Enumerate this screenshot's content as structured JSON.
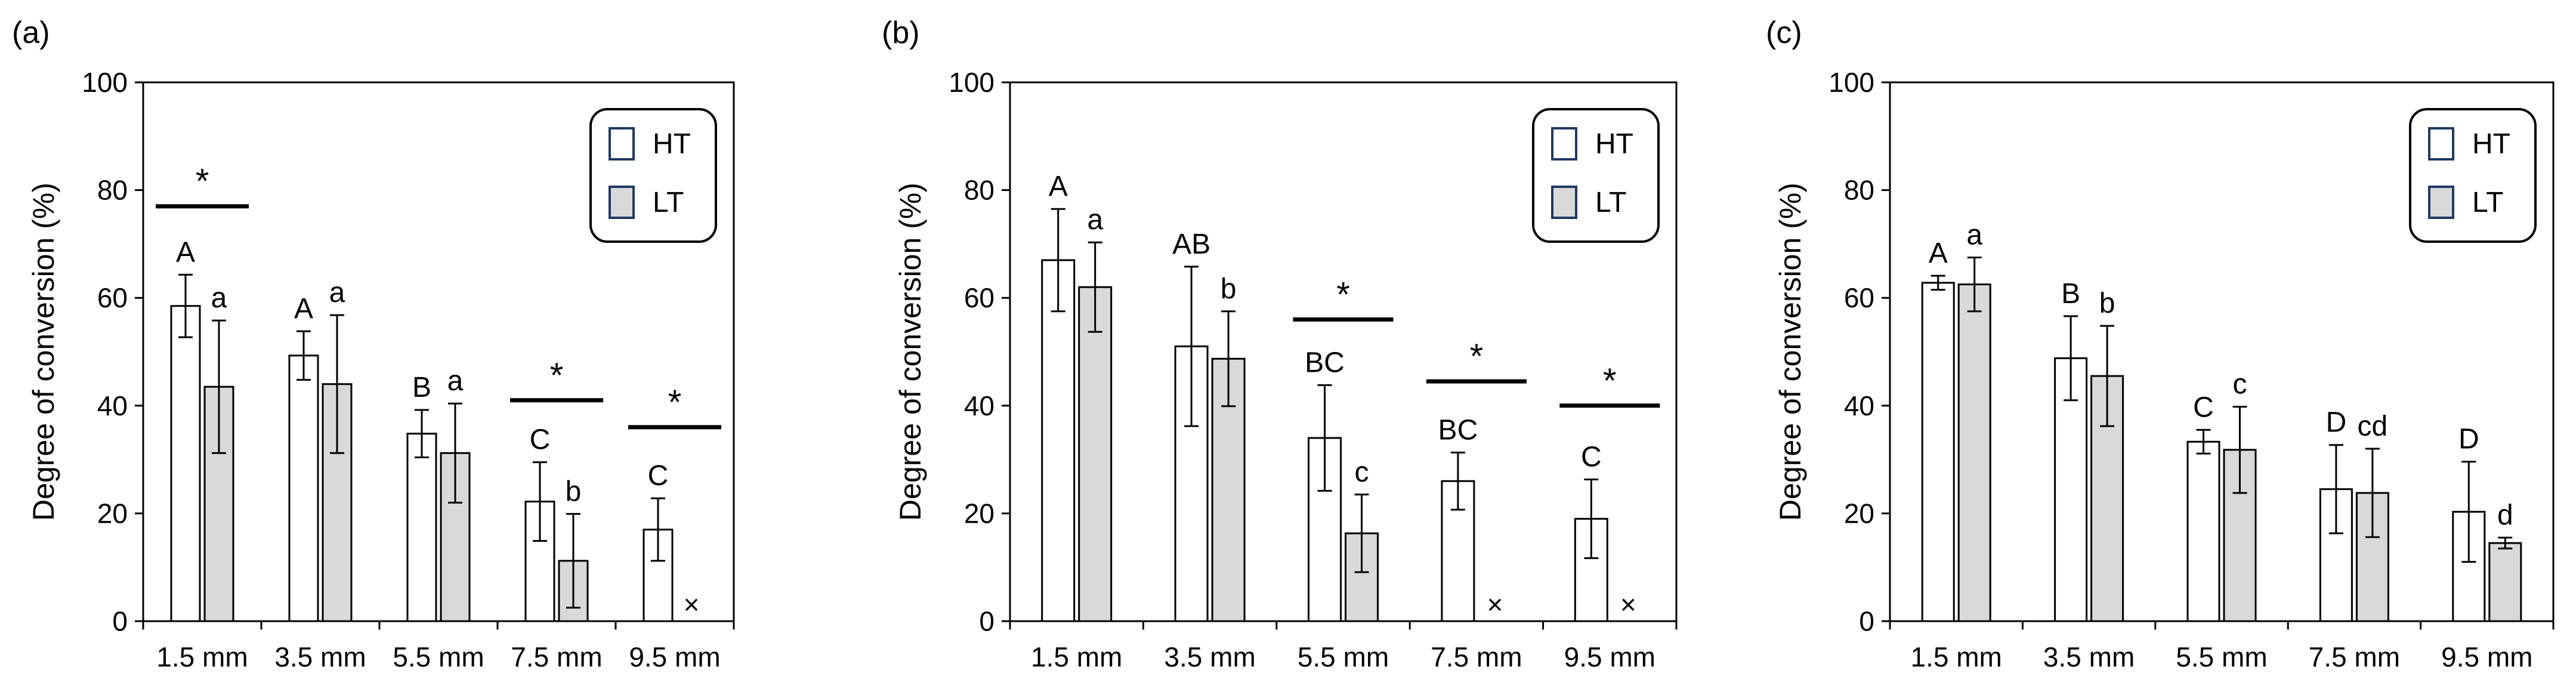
{
  "figure": {
    "colors": {
      "ht_fill": "#ffffff",
      "lt_fill": "#d9d9d9",
      "stroke": "#000000",
      "legend_stroke": "#1f3864"
    }
  },
  "chart_data": [
    {
      "panel_label": "(a)",
      "type": "bar",
      "ylabel": "Degree of conversion (%)",
      "xlabel": "",
      "ylim": [
        0,
        100
      ],
      "yticks": [
        "0",
        "20",
        "40",
        "60",
        "80",
        "100"
      ],
      "categories": [
        "1.5 mm",
        "3.5 mm",
        "5.5 mm",
        "7.5 mm",
        "9.5 mm"
      ],
      "legend": {
        "position": "top-right",
        "entries": [
          "HT",
          "LT"
        ]
      },
      "series": [
        {
          "name": "HT",
          "values": [
            58.5,
            49.3,
            34.8,
            22.2,
            17.0
          ],
          "errors": [
            5.8,
            4.5,
            4.4,
            7.3,
            5.8
          ],
          "letters": [
            "A",
            "A",
            "B",
            "C",
            "C"
          ]
        },
        {
          "name": "LT",
          "values": [
            43.5,
            44.0,
            31.2,
            11.2,
            null
          ],
          "errors": [
            12.3,
            12.8,
            9.2,
            8.7,
            null
          ],
          "letters": [
            "a",
            "a",
            "a",
            "b",
            ""
          ]
        }
      ],
      "missing_marker": "×",
      "significance": {
        "marker": "*",
        "categories": [
          "1.5 mm",
          "7.5 mm",
          "9.5 mm"
        ],
        "levels": [
          77,
          41,
          36
        ]
      }
    },
    {
      "panel_label": "(b)",
      "type": "bar",
      "ylabel": "Degree of conversion (%)",
      "xlabel": "",
      "ylim": [
        0,
        100
      ],
      "yticks": [
        "0",
        "20",
        "40",
        "60",
        "80",
        "100"
      ],
      "categories": [
        "1.5 mm",
        "3.5 mm",
        "5.5 mm",
        "7.5 mm",
        "9.5 mm"
      ],
      "legend": {
        "position": "top-right",
        "entries": [
          "HT",
          "LT"
        ]
      },
      "series": [
        {
          "name": "HT",
          "values": [
            67.0,
            51.0,
            34.0,
            26.0,
            19.0
          ],
          "errors": [
            9.5,
            14.8,
            9.8,
            5.3,
            7.3
          ],
          "letters": [
            "A",
            "AB",
            "BC",
            "BC",
            "C"
          ]
        },
        {
          "name": "LT",
          "values": [
            62.0,
            48.7,
            16.3,
            null,
            null
          ],
          "errors": [
            8.3,
            8.8,
            7.2,
            null,
            null
          ],
          "letters": [
            "a",
            "b",
            "c",
            "",
            ""
          ]
        }
      ],
      "missing_marker": "×",
      "significance": {
        "marker": "*",
        "categories": [
          "5.5 mm",
          "7.5 mm",
          "9.5 mm"
        ],
        "levels": [
          56,
          44.5,
          40
        ]
      }
    },
    {
      "panel_label": "(c)",
      "type": "bar",
      "ylabel": "Degree of conversion (%)",
      "xlabel": "",
      "ylim": [
        0,
        100
      ],
      "yticks": [
        "0",
        "20",
        "40",
        "60",
        "80",
        "100"
      ],
      "categories": [
        "1.5 mm",
        "3.5 mm",
        "5.5 mm",
        "7.5 mm",
        "9.5 mm"
      ],
      "legend": {
        "position": "top-right",
        "entries": [
          "HT",
          "LT"
        ]
      },
      "series": [
        {
          "name": "HT",
          "values": [
            62.8,
            48.8,
            33.3,
            24.5,
            20.3
          ],
          "errors": [
            1.3,
            7.8,
            2.2,
            8.2,
            9.3
          ],
          "letters": [
            "A",
            "B",
            "C",
            "D",
            "D"
          ]
        },
        {
          "name": "LT",
          "values": [
            62.5,
            45.5,
            31.8,
            23.8,
            14.5
          ],
          "errors": [
            5.0,
            9.3,
            8.0,
            8.2,
            1.0
          ],
          "letters": [
            "a",
            "b",
            "c",
            "cd",
            "d"
          ]
        }
      ],
      "missing_marker": "×",
      "significance": {
        "marker": "*",
        "categories": [],
        "levels": []
      }
    }
  ]
}
